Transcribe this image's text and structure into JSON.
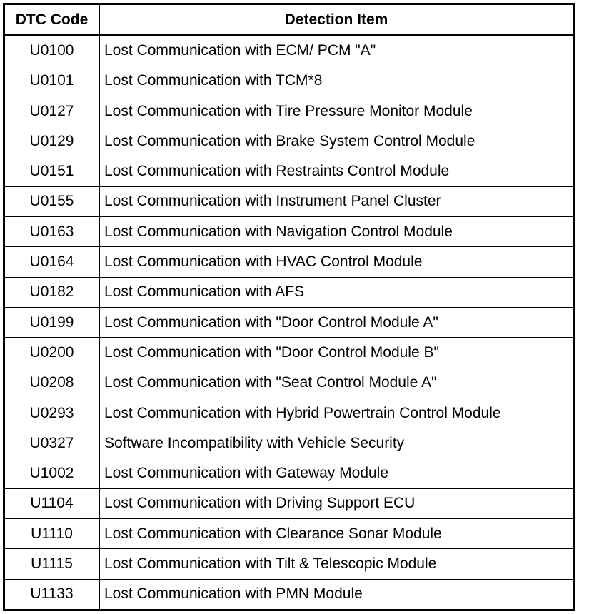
{
  "table": {
    "headers": [
      "DTC Code",
      "Detection Item"
    ],
    "rows": [
      {
        "code": "U0100",
        "item": "Lost Communication with ECM/ PCM \"A\""
      },
      {
        "code": "U0101",
        "item": "Lost Communication with TCM*8"
      },
      {
        "code": "U0127",
        "item": "Lost Communication with Tire Pressure Monitor Module"
      },
      {
        "code": "U0129",
        "item": "Lost Communication with Brake System Control Module"
      },
      {
        "code": "U0151",
        "item": "Lost Communication with Restraints Control Module"
      },
      {
        "code": "U0155",
        "item": "Lost Communication with Instrument Panel Cluster"
      },
      {
        "code": "U0163",
        "item": "Lost Communication with Navigation Control Module"
      },
      {
        "code": "U0164",
        "item": "Lost Communication with HVAC Control Module"
      },
      {
        "code": "U0182",
        "item": "Lost Communication with AFS"
      },
      {
        "code": "U0199",
        "item": "Lost Communication with \"Door Control Module A\""
      },
      {
        "code": "U0200",
        "item": "Lost Communication with \"Door Control Module B\""
      },
      {
        "code": "U0208",
        "item": "Lost Communication with \"Seat Control Module A\""
      },
      {
        "code": "U0293",
        "item": "Lost Communication with Hybrid Powertrain Control Module"
      },
      {
        "code": "U0327",
        "item": "Software Incompatibility with Vehicle Security"
      },
      {
        "code": "U1002",
        "item": "Lost Communication with Gateway Module"
      },
      {
        "code": "U1104",
        "item": "Lost Communication with Driving Support ECU"
      },
      {
        "code": "U1110",
        "item": "Lost Communication with Clearance Sonar Module"
      },
      {
        "code": "U1115",
        "item": "Lost Communication with Tilt & Telescopic Module"
      },
      {
        "code": "U1133",
        "item": "Lost Communication with PMN Module"
      }
    ]
  }
}
